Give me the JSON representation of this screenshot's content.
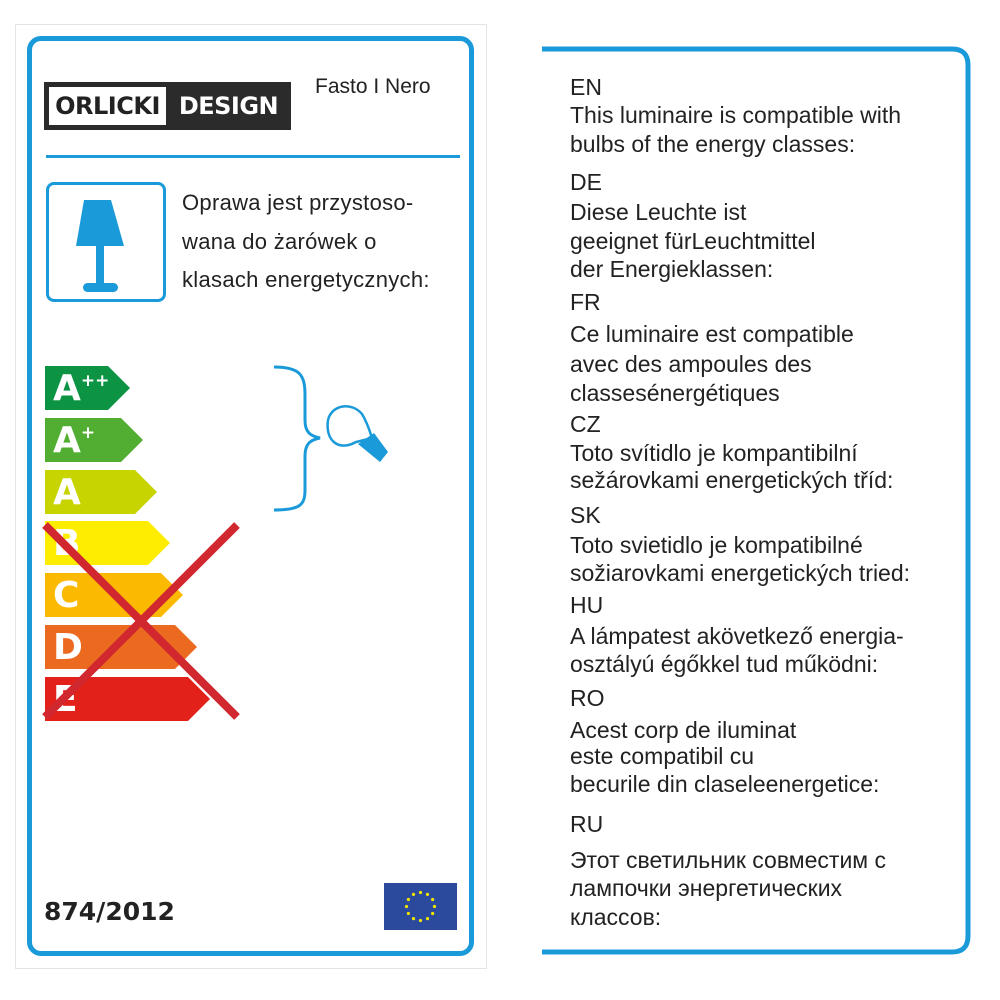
{
  "header": {
    "logo_text_left": "ORLICKI",
    "logo_text_right": "DESIGN",
    "model": "Fasto I Nero"
  },
  "polish_text": [
    "Oprawa jest przystoso-",
    "wana do żarówek o",
    "klasach energetycznych:"
  ],
  "energy_classes": [
    {
      "letter": "A",
      "sup": "++",
      "color": "#0c9444",
      "crossed": false
    },
    {
      "letter": "A",
      "sup": "+",
      "color": "#52ae32",
      "crossed": false
    },
    {
      "letter": "A",
      "sup": "",
      "color": "#c8d400",
      "crossed": false
    },
    {
      "letter": "B",
      "sup": "",
      "color": "#ffed00",
      "crossed": true
    },
    {
      "letter": "C",
      "sup": "",
      "color": "#fbba00",
      "crossed": true
    },
    {
      "letter": "D",
      "sup": "",
      "color": "#ec6a1f",
      "crossed": true
    },
    {
      "letter": "E",
      "sup": "",
      "color": "#e3211b",
      "crossed": true
    }
  ],
  "icons": {
    "lamp": "table-lamp-icon",
    "bulb": "light-bulb-icon",
    "brace": "curly-brace-icon",
    "cross": "red-x-mark",
    "flag": "eu-flag-icon"
  },
  "colors": {
    "accent": "#1a9ad9",
    "cross": "#d1272e",
    "eu_blue": "#2b4a9e",
    "eu_star": "#f2e600"
  },
  "regulation": "874/2012",
  "translations": [
    {
      "code": "EN",
      "lines": [
        "This luminaire is compatible with",
        "bulbs of the energy classes:"
      ]
    },
    {
      "code": "DE",
      "lines": [
        "Diese Leuchte ist",
        "geeignet fürLeuchtmittel",
        "der Energieklassen:"
      ]
    },
    {
      "code": "FR",
      "lines": [
        "Ce luminaire est compatible",
        "avec des ampoules des",
        "classesénergétiques"
      ]
    },
    {
      "code": "CZ",
      "lines": [
        "Toto svítidlo je kompantibilní",
        "sežárovkami energetických tříd:"
      ]
    },
    {
      "code": "SK",
      "lines": [
        "Toto svietidlo je kompatibilné",
        "sožiarovkami energetických tried:"
      ]
    },
    {
      "code": "HU",
      "lines": [
        "A lámpatest akövetkező energia-",
        "osztályú égőkkel tud működni:"
      ]
    },
    {
      "code": "RO",
      "lines": [
        "Acest corp de iluminat",
        "este compatibil cu",
        "becurile din claseleenergetice:"
      ]
    },
    {
      "code": "RU",
      "lines": [
        "Этот светильник совместим с",
        "лампочки энергетических",
        "классов:"
      ]
    }
  ]
}
